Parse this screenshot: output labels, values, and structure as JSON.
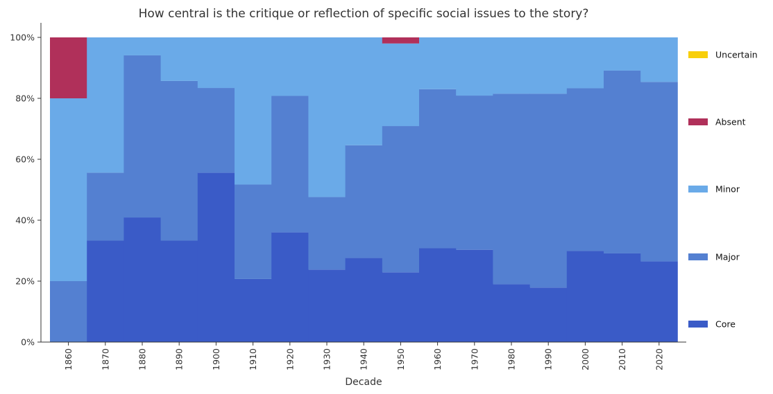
{
  "chart_data": {
    "type": "bar",
    "stacked": true,
    "normalized_percent": true,
    "title": "How central is the critique or reflection of specific social issues to the story?",
    "xlabel": "Decade",
    "ylabel": "",
    "ylim": [
      0,
      100
    ],
    "yticks": [
      "0%",
      "20%",
      "40%",
      "60%",
      "80%",
      "100%"
    ],
    "categories": [
      "1860",
      "1870",
      "1880",
      "1890",
      "1900",
      "1910",
      "1920",
      "1930",
      "1940",
      "1950",
      "1960",
      "1970",
      "1980",
      "1990",
      "2000",
      "2010",
      "2020"
    ],
    "series": [
      {
        "name": "Core",
        "color": "#3a5bc7",
        "values": [
          0,
          33.3,
          40.9,
          33.3,
          55.6,
          20.7,
          36.0,
          23.8,
          27.6,
          22.9,
          30.8,
          30.3,
          19.0,
          17.9,
          29.9,
          29.1,
          26.5
        ]
      },
      {
        "name": "Major",
        "color": "#5480d1",
        "values": [
          20.0,
          22.3,
          53.2,
          52.4,
          27.8,
          31.0,
          44.8,
          23.8,
          37.0,
          48.0,
          52.2,
          50.6,
          62.5,
          63.6,
          53.4,
          60.0,
          58.9
        ]
      },
      {
        "name": "Minor",
        "color": "#6aaae8",
        "values": [
          60.0,
          44.4,
          5.9,
          14.3,
          16.6,
          48.3,
          19.2,
          52.4,
          35.4,
          27.1,
          17.0,
          19.1,
          18.5,
          18.5,
          16.7,
          10.9,
          14.6
        ]
      },
      {
        "name": "Absent",
        "color": "#b0305a",
        "values": [
          20.0,
          0,
          0,
          0,
          0,
          0,
          0,
          0,
          0,
          2.0,
          0,
          0,
          0,
          0,
          0,
          0,
          0
        ]
      },
      {
        "name": "Uncertain",
        "color": "#f8cf0a",
        "values": [
          0,
          0,
          0,
          0,
          0,
          0,
          0,
          0,
          0,
          0,
          0,
          0,
          0,
          0,
          0,
          0,
          0
        ]
      }
    ],
    "legend": {
      "placement": "right",
      "order": [
        "Uncertain",
        "Absent",
        "Minor",
        "Major",
        "Core"
      ]
    },
    "grid": false
  }
}
